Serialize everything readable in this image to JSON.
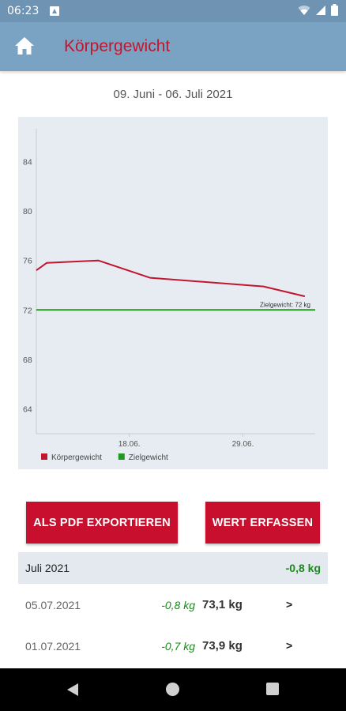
{
  "status": {
    "time": "06:23",
    "icons": [
      "notification-icon",
      "wifi-icon",
      "signal-icon",
      "battery-icon"
    ]
  },
  "app_bar": {
    "title": "Körpergewicht",
    "home_icon": "home-icon"
  },
  "date_range": "09. Juni - 06. Juli 2021",
  "chart_data": {
    "type": "line",
    "title": "",
    "xlabel": "",
    "ylabel": "",
    "ylim": [
      62,
      86
    ],
    "yticks": [
      64,
      68,
      72,
      76,
      80,
      84
    ],
    "xlim": [
      "2021-06-09",
      "2021-07-06"
    ],
    "xticks": [
      {
        "x": "2021-06-18",
        "label": "18.06."
      },
      {
        "x": "2021-06-29",
        "label": "29.06."
      }
    ],
    "series": [
      {
        "name": "Körpergewicht",
        "color": "#c0172e",
        "x": [
          "2021-06-09",
          "2021-06-10",
          "2021-06-15",
          "2021-06-20",
          "2021-07-01",
          "2021-07-05"
        ],
        "values": [
          75.2,
          75.8,
          76.0,
          74.6,
          73.9,
          73.1
        ]
      },
      {
        "name": "Zielgewicht",
        "color": "#1f9a1f",
        "x": [
          "2021-06-09",
          "2021-07-06"
        ],
        "values": [
          72,
          72
        ]
      }
    ],
    "annotation": "Zielgewicht: 72 kg",
    "legend_position": "bottom-left",
    "grid": false
  },
  "buttons": {
    "export_label": "ALS PDF EXPORTIEREN",
    "add_label": "WERT ERFASSEN"
  },
  "month": {
    "label": "Juli 2021",
    "delta": "-0,8 kg"
  },
  "entries": [
    {
      "date": "05.07.2021",
      "delta": "-0,8 kg",
      "value": "73,1 kg",
      "arrow": ">"
    },
    {
      "date": "01.07.2021",
      "delta": "-0,7 kg",
      "value": "73,9 kg",
      "arrow": ">"
    }
  ]
}
